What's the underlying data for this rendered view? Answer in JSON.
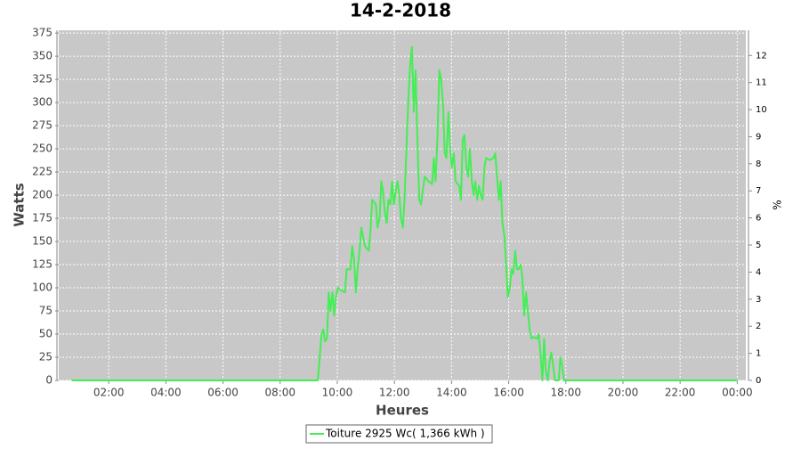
{
  "chart_data": {
    "type": "line",
    "title": "14-2-2018",
    "x_label": "Heures",
    "y_label": "Watts",
    "y2_label": "%",
    "x": [
      0.7,
      9.2,
      9.32,
      9.45,
      9.51,
      9.57,
      9.64,
      9.7,
      9.76,
      9.83,
      9.89,
      9.95,
      10.02,
      10.14,
      10.27,
      10.33,
      10.46,
      10.52,
      10.59,
      10.65,
      10.71,
      10.78,
      10.84,
      10.97,
      11.1,
      11.16,
      11.22,
      11.35,
      11.41,
      11.48,
      11.54,
      11.6,
      11.67,
      11.73,
      11.79,
      11.86,
      11.92,
      11.98,
      12.05,
      12.11,
      12.17,
      12.23,
      12.3,
      12.36,
      12.42,
      12.49,
      12.55,
      12.61,
      12.68,
      12.74,
      12.8,
      12.87,
      12.93,
      13.06,
      13.19,
      13.32,
      13.38,
      13.44,
      13.51,
      13.57,
      13.63,
      13.7,
      13.76,
      13.82,
      13.89,
      13.95,
      14.01,
      14.08,
      14.14,
      14.27,
      14.33,
      14.39,
      14.45,
      14.52,
      14.58,
      14.64,
      14.71,
      14.77,
      14.83,
      14.9,
      14.96,
      15.02,
      15.09,
      15.15,
      15.21,
      15.34,
      15.47,
      15.53,
      15.59,
      15.66,
      15.72,
      15.78,
      15.85,
      15.91,
      15.97,
      16.04,
      16.1,
      16.16,
      16.23,
      16.29,
      16.35,
      16.42,
      16.48,
      16.54,
      16.61,
      16.67,
      16.73,
      16.8,
      16.86,
      16.99,
      17.05,
      17.11,
      17.18,
      17.24,
      17.3,
      17.37,
      17.43,
      17.49,
      17.56,
      17.62,
      17.75,
      17.81,
      17.87,
      17.94,
      18.13,
      24.0
    ],
    "series": [
      {
        "name": "Toiture 2925 Wc( 1,366 kWh )",
        "color": "#44ee55",
        "values": [
          0,
          0,
          0,
          50,
          55,
          42,
          45,
          95,
          75,
          95,
          70,
          90,
          100,
          97,
          95,
          120,
          120,
          145,
          130,
          95,
          120,
          140,
          165,
          145,
          140,
          160,
          195,
          190,
          165,
          175,
          215,
          205,
          180,
          170,
          195,
          190,
          215,
          190,
          205,
          215,
          200,
          175,
          165,
          200,
          250,
          305,
          340,
          360,
          290,
          335,
          265,
          195,
          190,
          220,
          215,
          212,
          240,
          215,
          265,
          335,
          325,
          300,
          245,
          240,
          290,
          250,
          230,
          245,
          215,
          210,
          195,
          260,
          265,
          230,
          220,
          250,
          215,
          200,
          215,
          195,
          210,
          200,
          195,
          230,
          240,
          238,
          240,
          245,
          220,
          195,
          215,
          170,
          155,
          125,
          90,
          100,
          120,
          115,
          140,
          120,
          120,
          125,
          110,
          70,
          95,
          75,
          55,
          45,
          47,
          45,
          50,
          30,
          0,
          45,
          10,
          0,
          20,
          30,
          15,
          0,
          0,
          25,
          15,
          0,
          0,
          0
        ]
      }
    ],
    "xlim": [
      0.25,
      24.3
    ],
    "xticks": [
      {
        "value": 2,
        "label": "02:00"
      },
      {
        "value": 4,
        "label": "04:00"
      },
      {
        "value": 6,
        "label": "06:00"
      },
      {
        "value": 8,
        "label": "08:00"
      },
      {
        "value": 10,
        "label": "10:00"
      },
      {
        "value": 12,
        "label": "12:00"
      },
      {
        "value": 14,
        "label": "14:00"
      },
      {
        "value": 16,
        "label": "16:00"
      },
      {
        "value": 18,
        "label": "18:00"
      },
      {
        "value": 20,
        "label": "20:00"
      },
      {
        "value": 22,
        "label": "22:00"
      },
      {
        "value": 24,
        "label": "00:00"
      }
    ],
    "ylim": [
      0,
      378
    ],
    "yticks": [
      0,
      25,
      50,
      75,
      100,
      125,
      150,
      175,
      200,
      225,
      250,
      275,
      300,
      325,
      350,
      375
    ],
    "y2lim": [
      0,
      12.93
    ],
    "y2ticks": [
      0,
      1,
      2,
      3,
      4,
      5,
      6,
      7,
      8,
      9,
      10,
      11,
      12
    ],
    "grid": true,
    "legend": "bottom"
  }
}
